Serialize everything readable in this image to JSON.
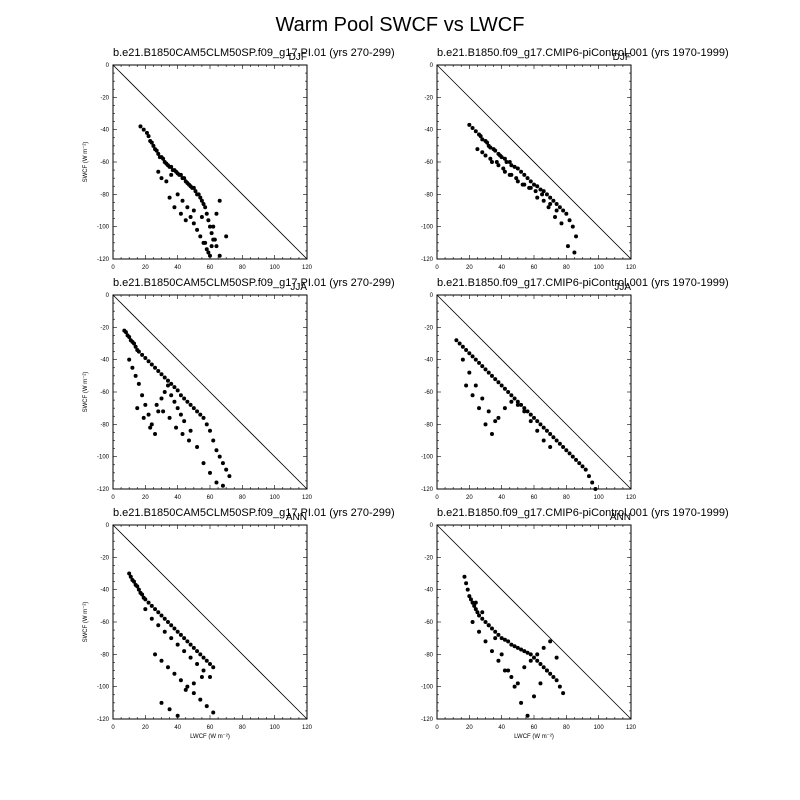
{
  "figure": {
    "title": "Warm Pool SWCF vs LWCF",
    "xlabel": "LWCF (W m⁻²)",
    "ylabel": "SWCF (W m⁻²)",
    "xticks": [
      "0",
      "20",
      "40",
      "60",
      "80",
      "100",
      "120"
    ],
    "yticks": [
      "0",
      "-20",
      "-40",
      "-60",
      "-80",
      "-100",
      "-120"
    ]
  },
  "chart_data": [
    {
      "type": "scatter",
      "title": "b.e21.B1850CAM5CLM50SP.f09_g17.PI.01 (yrs 270-299)",
      "subtitle": "DJF",
      "xlim": [
        0,
        120
      ],
      "ylim": [
        -120,
        0
      ],
      "reference_line": [
        [
          0,
          0
        ],
        [
          120,
          -120
        ]
      ],
      "x": [
        17,
        19,
        21,
        22,
        23,
        24,
        25,
        26,
        27,
        28,
        29,
        30,
        31,
        32,
        33,
        34,
        35,
        36,
        37,
        38,
        39,
        40,
        41,
        42,
        43,
        44,
        45,
        46,
        47,
        48,
        49,
        50,
        51,
        52,
        53,
        54,
        55,
        56,
        57,
        58,
        59,
        60,
        61,
        62,
        64,
        66,
        70,
        28,
        30,
        33,
        36,
        40,
        43,
        46,
        48,
        50,
        52,
        54,
        56,
        58,
        60,
        62,
        64,
        66,
        35,
        38,
        42,
        45,
        50,
        55,
        57,
        59,
        61,
        63
      ],
      "y": [
        -38,
        -40,
        -42,
        -44,
        -47,
        -48,
        -50,
        -52,
        -53,
        -55,
        -57,
        -57,
        -58,
        -60,
        -61,
        -62,
        -63,
        -63,
        -65,
        -65,
        -66,
        -67,
        -68,
        -68,
        -70,
        -70,
        -72,
        -73,
        -74,
        -75,
        -76,
        -76,
        -78,
        -80,
        -80,
        -82,
        -84,
        -86,
        -88,
        -92,
        -96,
        -100,
        -104,
        -108,
        -112,
        -118,
        -106,
        -66,
        -70,
        -72,
        -68,
        -80,
        -84,
        -88,
        -94,
        -98,
        -102,
        -106,
        -110,
        -114,
        -118,
        -100,
        -92,
        -84,
        -82,
        -88,
        -92,
        -96,
        -90,
        -94,
        -110,
        -116,
        -112,
        -108
      ],
      "series": [
        {
          "name": ""
        }
      ]
    },
    {
      "type": "scatter",
      "title": "b.e21.B1850.f09_g17.CMIP6-piControl.001 (yrs 1970-1999)",
      "subtitle": "DJF",
      "xlim": [
        0,
        120
      ],
      "ylim": [
        -120,
        0
      ],
      "reference_line": [
        [
          0,
          0
        ],
        [
          120,
          -120
        ]
      ],
      "x": [
        20,
        22,
        24,
        26,
        27,
        28,
        30,
        31,
        32,
        33,
        35,
        36,
        38,
        39,
        40,
        42,
        43,
        45,
        46,
        48,
        50,
        52,
        54,
        56,
        58,
        60,
        62,
        64,
        66,
        68,
        70,
        72,
        74,
        76,
        78,
        80,
        82,
        84,
        86,
        30,
        34,
        38,
        42,
        46,
        50,
        54,
        58,
        62,
        66,
        70,
        74,
        25,
        28,
        33,
        37,
        41,
        45,
        49,
        53,
        57,
        61,
        65,
        69,
        73,
        77,
        81,
        85
      ],
      "y": [
        -37,
        -39,
        -41,
        -43,
        -44,
        -46,
        -47,
        -48,
        -50,
        -51,
        -52,
        -53,
        -55,
        -56,
        -57,
        -58,
        -60,
        -60,
        -62,
        -63,
        -64,
        -66,
        -68,
        -70,
        -72,
        -74,
        -75,
        -77,
        -78,
        -80,
        -82,
        -84,
        -86,
        -88,
        -90,
        -92,
        -96,
        -100,
        -106,
        -56,
        -60,
        -62,
        -66,
        -68,
        -72,
        -74,
        -76,
        -82,
        -84,
        -86,
        -90,
        -52,
        -54,
        -58,
        -60,
        -64,
        -68,
        -70,
        -74,
        -76,
        -78,
        -80,
        -88,
        -94,
        -98,
        -112,
        -116
      ],
      "series": [
        {
          "name": ""
        }
      ]
    },
    {
      "type": "scatter",
      "title": "b.e21.B1850CAM5CLM50SP.f09_g17.PI.01 (yrs 270-299)",
      "subtitle": "JJA",
      "xlim": [
        0,
        120
      ],
      "ylim": [
        -120,
        0
      ],
      "reference_line": [
        [
          0,
          0
        ],
        [
          120,
          -120
        ]
      ],
      "x": [
        7,
        8,
        9,
        10,
        11,
        12,
        13,
        14,
        15,
        16,
        18,
        20,
        22,
        24,
        26,
        28,
        30,
        32,
        34,
        36,
        38,
        40,
        42,
        44,
        46,
        48,
        50,
        52,
        54,
        56,
        58,
        60,
        62,
        64,
        66,
        68,
        70,
        72,
        10,
        12,
        14,
        16,
        18,
        20,
        22,
        24,
        26,
        28,
        30,
        32,
        34,
        36,
        38,
        40,
        42,
        44,
        48,
        52,
        56,
        60,
        64,
        68,
        15,
        19,
        23,
        27,
        31,
        35,
        39,
        43,
        47
      ],
      "y": [
        -22,
        -23,
        -25,
        -26,
        -28,
        -29,
        -30,
        -32,
        -34,
        -35,
        -37,
        -39,
        -41,
        -43,
        -45,
        -47,
        -49,
        -51,
        -53,
        -55,
        -57,
        -59,
        -62,
        -64,
        -66,
        -68,
        -70,
        -72,
        -74,
        -76,
        -80,
        -84,
        -90,
        -96,
        -100,
        -104,
        -108,
        -112,
        -40,
        -45,
        -50,
        -55,
        -62,
        -68,
        -74,
        -80,
        -86,
        -72,
        -64,
        -60,
        -56,
        -62,
        -66,
        -70,
        -74,
        -78,
        -84,
        -94,
        -104,
        -110,
        -116,
        -118,
        -70,
        -76,
        -82,
        -68,
        -72,
        -76,
        -82,
        -86,
        -90
      ],
      "series": [
        {
          "name": ""
        }
      ]
    },
    {
      "type": "scatter",
      "title": "b.e21.B1850.f09_g17.CMIP6-piControl.001 (yrs 1970-1999)",
      "subtitle": "JJA",
      "xlim": [
        0,
        120
      ],
      "ylim": [
        -120,
        0
      ],
      "reference_line": [
        [
          0,
          0
        ],
        [
          120,
          -120
        ]
      ],
      "x": [
        12,
        14,
        16,
        18,
        20,
        22,
        24,
        26,
        28,
        30,
        32,
        34,
        36,
        38,
        40,
        42,
        44,
        46,
        48,
        50,
        52,
        54,
        56,
        58,
        60,
        62,
        64,
        66,
        68,
        70,
        72,
        74,
        76,
        78,
        80,
        82,
        84,
        86,
        88,
        90,
        92,
        94,
        96,
        98,
        16,
        20,
        24,
        28,
        32,
        36,
        18,
        22,
        26,
        30,
        34,
        38,
        42,
        46,
        50,
        54,
        58,
        62,
        66,
        70
      ],
      "y": [
        -28,
        -30,
        -32,
        -34,
        -36,
        -38,
        -40,
        -42,
        -44,
        -46,
        -48,
        -50,
        -52,
        -54,
        -56,
        -58,
        -60,
        -62,
        -64,
        -66,
        -68,
        -70,
        -72,
        -74,
        -76,
        -78,
        -80,
        -82,
        -84,
        -86,
        -88,
        -90,
        -92,
        -94,
        -96,
        -98,
        -100,
        -102,
        -104,
        -106,
        -108,
        -112,
        -116,
        -120,
        -40,
        -48,
        -56,
        -64,
        -72,
        -78,
        -56,
        -62,
        -70,
        -80,
        -86,
        -76,
        -70,
        -66,
        -68,
        -72,
        -78,
        -84,
        -90,
        -94
      ],
      "series": [
        {
          "name": ""
        }
      ]
    },
    {
      "type": "scatter",
      "title": "b.e21.B1850CAM5CLM50SP.f09_g17.PI.01 (yrs 270-299)",
      "subtitle": "ANN",
      "xlim": [
        0,
        120
      ],
      "ylim": [
        -120,
        0
      ],
      "reference_line": [
        [
          0,
          0
        ],
        [
          120,
          -120
        ]
      ],
      "x": [
        10,
        11,
        12,
        13,
        14,
        15,
        16,
        17,
        18,
        19,
        20,
        22,
        24,
        26,
        28,
        30,
        32,
        34,
        36,
        38,
        40,
        42,
        44,
        46,
        48,
        50,
        52,
        54,
        56,
        58,
        60,
        62,
        20,
        24,
        28,
        32,
        36,
        40,
        44,
        48,
        52,
        56,
        60,
        26,
        30,
        34,
        38,
        42,
        46,
        50,
        54,
        58,
        62,
        30,
        35,
        40,
        45,
        50,
        55
      ],
      "y": [
        -30,
        -32,
        -34,
        -35,
        -37,
        -38,
        -40,
        -42,
        -43,
        -45,
        -46,
        -48,
        -50,
        -52,
        -54,
        -56,
        -58,
        -60,
        -62,
        -64,
        -66,
        -68,
        -70,
        -72,
        -74,
        -76,
        -78,
        -80,
        -82,
        -84,
        -86,
        -88,
        -52,
        -58,
        -62,
        -66,
        -70,
        -74,
        -78,
        -82,
        -86,
        -90,
        -94,
        -80,
        -84,
        -88,
        -92,
        -96,
        -100,
        -104,
        -108,
        -112,
        -116,
        -110,
        -114,
        -118,
        -102,
        -98,
        -94
      ],
      "series": [
        {
          "name": ""
        }
      ]
    },
    {
      "type": "scatter",
      "title": "b.e21.B1850.f09_g17.CMIP6-piControl.001 (yrs 1970-1999)",
      "subtitle": "ANN",
      "xlim": [
        0,
        120
      ],
      "ylim": [
        -120,
        0
      ],
      "reference_line": [
        [
          0,
          0
        ],
        [
          120,
          -120
        ]
      ],
      "x": [
        17,
        18,
        19,
        20,
        21,
        22,
        23,
        24,
        25,
        26,
        28,
        30,
        32,
        34,
        36,
        38,
        40,
        42,
        44,
        46,
        48,
        50,
        52,
        54,
        56,
        58,
        60,
        62,
        64,
        66,
        68,
        70,
        72,
        74,
        76,
        78,
        22,
        26,
        30,
        34,
        38,
        42,
        46,
        50,
        54,
        58,
        62,
        66,
        70,
        74,
        24,
        28,
        32,
        36,
        40,
        44,
        48,
        52,
        56,
        60,
        64,
        68
      ],
      "y": [
        -32,
        -36,
        -40,
        -44,
        -46,
        -48,
        -50,
        -52,
        -54,
        -56,
        -58,
        -60,
        -62,
        -64,
        -66,
        -68,
        -70,
        -71,
        -72,
        -74,
        -75,
        -76,
        -77,
        -78,
        -79,
        -80,
        -82,
        -84,
        -86,
        -88,
        -90,
        -92,
        -94,
        -96,
        -100,
        -104,
        -60,
        -66,
        -72,
        -78,
        -84,
        -90,
        -94,
        -98,
        -88,
        -84,
        -80,
        -76,
        -72,
        -82,
        -48,
        -54,
        -62,
        -70,
        -80,
        -90,
        -100,
        -110,
        -118,
        -106,
        -98,
        -90
      ],
      "series": [
        {
          "name": ""
        }
      ]
    }
  ]
}
